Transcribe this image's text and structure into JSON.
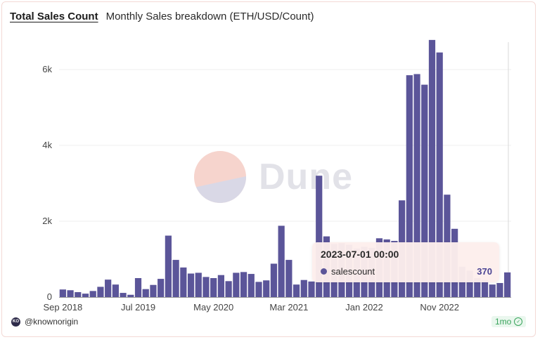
{
  "header": {
    "title": "Total Sales Count",
    "subtitle": "Monthly Sales breakdown (ETH/USD/Count)"
  },
  "colors": {
    "bar": "#5b5599",
    "axis": "#444444",
    "grid": "#efefef",
    "crosshair": "#d8d8d8"
  },
  "chart_data": {
    "type": "bar",
    "title": "Total Sales Count",
    "subtitle": "Monthly Sales breakdown (ETH/USD/Count)",
    "xlabel": "",
    "ylabel": "",
    "ylim": [
      0,
      7000
    ],
    "yticks": [
      0,
      2000,
      4000,
      6000
    ],
    "ytick_labels": [
      "0",
      "2k",
      "4k",
      "6k"
    ],
    "x_tick_labels": [
      {
        "label": "Sep 2018",
        "index": 0
      },
      {
        "label": "Jul 2019",
        "index": 10
      },
      {
        "label": "May 2020",
        "index": 20
      },
      {
        "label": "Mar 2021",
        "index": 30
      },
      {
        "label": "Jan 2022",
        "index": 40
      },
      {
        "label": "Nov 2022",
        "index": 50
      }
    ],
    "grid": true,
    "series": [
      {
        "name": "salescount",
        "categories": [
          "2018-09",
          "2018-10",
          "2018-11",
          "2018-12",
          "2019-01",
          "2019-02",
          "2019-03",
          "2019-04",
          "2019-05",
          "2019-06",
          "2019-07",
          "2019-08",
          "2019-09",
          "2019-10",
          "2019-11",
          "2019-12",
          "2020-01",
          "2020-02",
          "2020-03",
          "2020-04",
          "2020-05",
          "2020-06",
          "2020-07",
          "2020-08",
          "2020-09",
          "2020-10",
          "2020-11",
          "2020-12",
          "2021-01",
          "2021-02",
          "2021-03",
          "2021-04",
          "2021-05",
          "2021-06",
          "2021-07",
          "2021-08",
          "2021-09",
          "2021-10",
          "2021-11",
          "2021-12",
          "2022-01",
          "2022-02",
          "2022-03",
          "2022-04",
          "2022-05",
          "2022-06",
          "2022-07",
          "2022-08",
          "2022-09",
          "2022-10",
          "2022-11",
          "2022-12",
          "2023-01",
          "2023-02",
          "2023-03",
          "2023-04",
          "2023-05",
          "2023-06",
          "2023-07",
          "2023-08"
        ],
        "values": [
          200,
          180,
          130,
          90,
          160,
          270,
          460,
          330,
          110,
          60,
          500,
          210,
          320,
          480,
          1620,
          980,
          780,
          620,
          640,
          530,
          500,
          580,
          420,
          640,
          660,
          610,
          400,
          440,
          880,
          1880,
          980,
          330,
          450,
          410,
          3200,
          1600,
          1400,
          1420,
          1380,
          1280,
          1330,
          1300,
          1550,
          1520,
          1480,
          2550,
          5850,
          5880,
          5600,
          6780,
          6450,
          2700,
          1800,
          800,
          700,
          500,
          450,
          330,
          370,
          650
        ]
      }
    ],
    "tooltip": {
      "date": "2023-07-01 00:00",
      "series": "salescount",
      "value": "370"
    }
  },
  "footer": {
    "author": "@knownorigin",
    "avatar_text": "KO",
    "freshness": "1mo",
    "check_icon": "✓"
  },
  "watermark": {
    "text": "Dune"
  }
}
